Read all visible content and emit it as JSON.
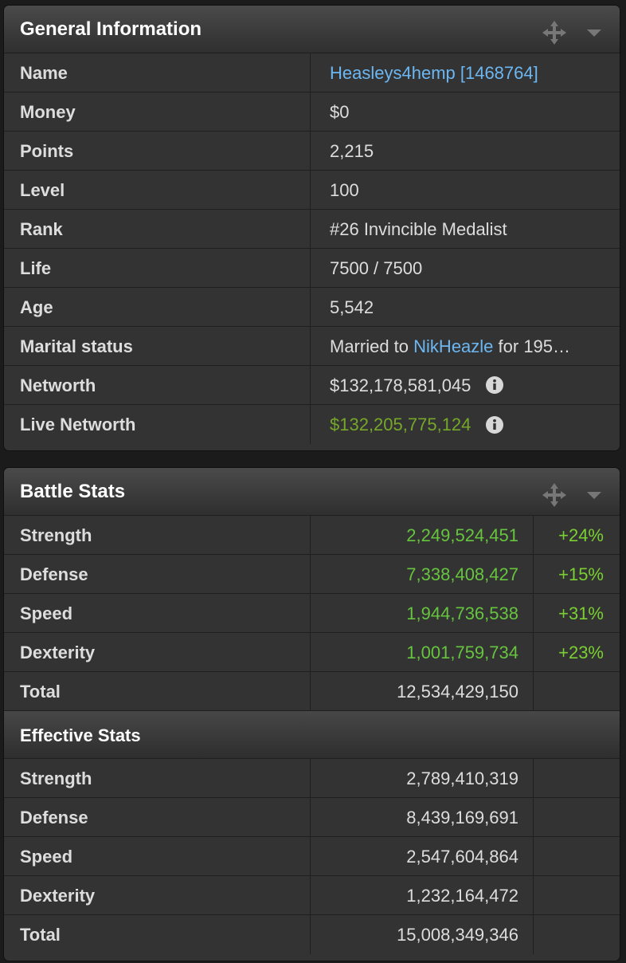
{
  "general": {
    "title": "General Information",
    "rows": {
      "name": {
        "label": "Name",
        "value": "Heasleys4hemp [1468764]"
      },
      "money": {
        "label": "Money",
        "value": "$0"
      },
      "points": {
        "label": "Points",
        "value": "2,215"
      },
      "level": {
        "label": "Level",
        "value": "100"
      },
      "rank": {
        "label": "Rank",
        "value": "#26 Invincible Medalist"
      },
      "life": {
        "label": "Life",
        "value": "7500 / 7500"
      },
      "age": {
        "label": "Age",
        "value": "5,542"
      },
      "marital": {
        "label": "Marital status",
        "prefix": "Married to ",
        "spouse": "NikHeazle",
        "suffix": " for 195…"
      },
      "networth": {
        "label": "Networth",
        "value": "$132,178,581,045"
      },
      "live_networth": {
        "label": "Live Networth",
        "value": "$132,205,775,124"
      }
    }
  },
  "battle": {
    "title": "Battle Stats",
    "rows": [
      {
        "label": "Strength",
        "value": "2,249,524,451",
        "pct": "+24%"
      },
      {
        "label": "Defense",
        "value": "7,338,408,427",
        "pct": "+15%"
      },
      {
        "label": "Speed",
        "value": "1,944,736,538",
        "pct": "+31%"
      },
      {
        "label": "Dexterity",
        "value": "1,001,759,734",
        "pct": "+23%"
      }
    ],
    "total": {
      "label": "Total",
      "value": "12,534,429,150"
    },
    "effective_title": "Effective Stats",
    "effective_rows": [
      {
        "label": "Strength",
        "value": "2,789,410,319"
      },
      {
        "label": "Defense",
        "value": "8,439,169,691"
      },
      {
        "label": "Speed",
        "value": "2,547,604,864"
      },
      {
        "label": "Dexterity",
        "value": "1,232,164,472"
      }
    ],
    "effective_total": {
      "label": "Total",
      "value": "15,008,349,346"
    }
  },
  "colors": {
    "link": "#6cb7f2",
    "positive": "#66c43e",
    "live_networth": "#76a72a"
  },
  "icons": [
    "move-icon",
    "chevron-down-icon",
    "info-icon"
  ]
}
